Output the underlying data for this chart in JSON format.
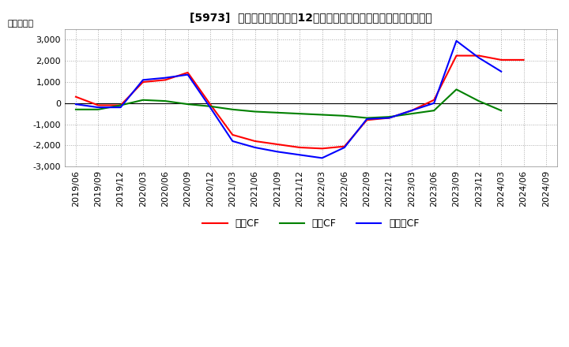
{
  "title": "[5973]  キャッシュフローの12か月移動合計の対前年同期増減額の推移",
  "ylabel": "（百万円）",
  "background_color": "#ffffff",
  "plot_background_color": "#ffffff",
  "grid_color": "#aaaaaa",
  "x_labels": [
    "2019/06",
    "2019/09",
    "2019/12",
    "2020/03",
    "2020/06",
    "2020/09",
    "2020/12",
    "2021/03",
    "2021/06",
    "2021/09",
    "2021/12",
    "2022/03",
    "2022/06",
    "2022/09",
    "2022/12",
    "2023/03",
    "2023/06",
    "2023/09",
    "2023/12",
    "2024/03",
    "2024/06",
    "2024/09"
  ],
  "eigyo_cf": [
    300,
    -100,
    -100,
    1000,
    1100,
    1450,
    -50,
    -1500,
    -1800,
    -1950,
    -2100,
    -2150,
    -2050,
    -800,
    -700,
    -350,
    150,
    2250,
    2250,
    2050,
    2050,
    null
  ],
  "toshi_cf": [
    -300,
    -300,
    -100,
    150,
    100,
    -50,
    -150,
    -300,
    -400,
    -450,
    -500,
    -550,
    -600,
    -700,
    -650,
    -500,
    -350,
    650,
    100,
    -350,
    null,
    null
  ],
  "free_cf": [
    -50,
    -200,
    -200,
    1100,
    1200,
    1350,
    -200,
    -1800,
    -2100,
    -2300,
    -2450,
    -2600,
    -2100,
    -750,
    -700,
    -350,
    0,
    2950,
    2150,
    1500,
    null,
    null
  ],
  "ylim": [
    -3000,
    3500
  ],
  "yticks": [
    -3000,
    -2000,
    -1000,
    0,
    1000,
    2000,
    3000
  ],
  "colors": {
    "eigyo": "#ff0000",
    "toshi": "#008000",
    "free": "#0000ff"
  },
  "legend_labels": {
    "eigyo": "営業CF",
    "toshi": "投資CF",
    "free": "フリーCF"
  }
}
